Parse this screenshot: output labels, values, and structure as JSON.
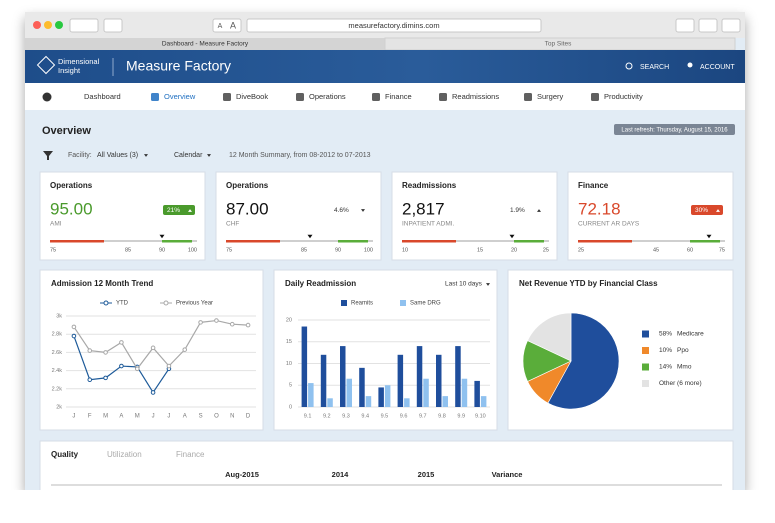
{
  "browser": {
    "text_size": [
      "A",
      "A"
    ],
    "url": "measurefactory.dimins.com",
    "tabs": [
      "Dashboard - Measure Factory",
      "Top Sites"
    ]
  },
  "header": {
    "logo": [
      "Dimensional",
      "Insight"
    ],
    "title": "Measure Factory",
    "search": "SEARCH",
    "account": "ACCOUNT"
  },
  "nav": [
    "Dashboard",
    "Overview",
    "DiveBook",
    "Operations",
    "Finance",
    "Readmissions",
    "Surgery",
    "Productivity"
  ],
  "overview": {
    "title": "Overview",
    "last_refresh": "Last refresh: Thursday, August 15, 2016",
    "facility_label": "Facility:",
    "facility_value": "All Values (3)",
    "calendar": "Calendar",
    "summary": "12 Month Summary, from 08-2012 to 07-2013"
  },
  "kpis": [
    {
      "title": "Operations",
      "value": "95.00",
      "value_color": "#4a9a2c",
      "change": "21%",
      "trend": "up",
      "badge_color": "#4a9a2c",
      "measure": "AMI",
      "scale": [
        "75",
        "85",
        "90",
        "100"
      ]
    },
    {
      "title": "Operations",
      "value": "87.00",
      "value_color": "#111111",
      "change": "4.6%",
      "trend": "down",
      "badge_color": null,
      "measure": "CHF",
      "scale": [
        "75",
        "85",
        "90",
        "100"
      ]
    },
    {
      "title": "Readmissions",
      "value": "2,817",
      "value_color": "#111111",
      "change": "1.9%",
      "trend": "up",
      "badge_color": null,
      "measure": "INPATIENT ADMI.",
      "scale": [
        "10",
        "15",
        "20",
        "25"
      ]
    },
    {
      "title": "Finance",
      "value": "72.18",
      "value_color": "#d9482b",
      "change": "30%",
      "trend": "up",
      "badge_color": "#d9482b",
      "measure": "CURRENT AR DAYS",
      "scale": [
        "25",
        "45",
        "60",
        "75"
      ]
    }
  ],
  "chart_data": [
    {
      "type": "line",
      "title": "Admission 12 Month Trend",
      "categories": [
        "J",
        "F",
        "M",
        "A",
        "M",
        "J",
        "J",
        "A",
        "S",
        "O",
        "N",
        "D"
      ],
      "series": [
        {
          "name": "YTD",
          "color": "#1d5a99",
          "values": [
            2780,
            2300,
            2320,
            2450,
            2440,
            2160,
            2420,
            null,
            null,
            null,
            null,
            null
          ]
        },
        {
          "name": "Previous Year",
          "color": "#a8a8a8",
          "values": [
            2880,
            2620,
            2600,
            2710,
            2420,
            2650,
            2450,
            2630,
            2930,
            2950,
            2910,
            2900
          ]
        }
      ],
      "ylim": [
        2000,
        3000
      ],
      "yticks": [
        {
          "value": 2000,
          "label": "2k"
        },
        {
          "value": 2200,
          "label": "2.2k"
        },
        {
          "value": 2400,
          "label": "2.4k"
        },
        {
          "value": 2600,
          "label": "2.6k"
        },
        {
          "value": 2800,
          "label": "2.8k"
        },
        {
          "value": 3000,
          "label": "3k"
        }
      ],
      "grid": true
    },
    {
      "type": "bar",
      "title": "Daily Readmission",
      "control": "Last 10 days",
      "categories": [
        "9.1",
        "9.2",
        "9.3",
        "9.4",
        "9.5",
        "9.6",
        "9.7",
        "9.8",
        "9.9",
        "9.10"
      ],
      "series": [
        {
          "name": "Reamits",
          "color": "#1f4e9c",
          "values": [
            18.5,
            12,
            14,
            9,
            4.5,
            12,
            14,
            12,
            14,
            6
          ]
        },
        {
          "name": "Same DRG",
          "color": "#8fc1ef",
          "values": [
            5.5,
            2,
            6.5,
            2.5,
            5,
            2,
            6.5,
            2.5,
            6.5,
            2.5
          ]
        }
      ],
      "ylim": [
        0,
        20
      ],
      "yticks": [
        0,
        5,
        10,
        15,
        20
      ],
      "grid": true
    },
    {
      "type": "pie",
      "title": "Net Revenue YTD by Financial Class",
      "categories": [
        "Medicare",
        "Ppo",
        "Mmo",
        "Other (6 more)"
      ],
      "values": [
        58,
        10,
        14,
        18
      ],
      "value_labels": [
        "58%",
        "10%",
        "14%",
        null
      ],
      "colors": [
        "#1f4e9c",
        "#f0892a",
        "#5aad3a",
        "#e3e3e3"
      ]
    }
  ],
  "table": {
    "tabs": [
      "Quality",
      "Utilization",
      "Finance"
    ],
    "columns": [
      "Aug-2015",
      "2014",
      "2015",
      "Variance"
    ]
  }
}
